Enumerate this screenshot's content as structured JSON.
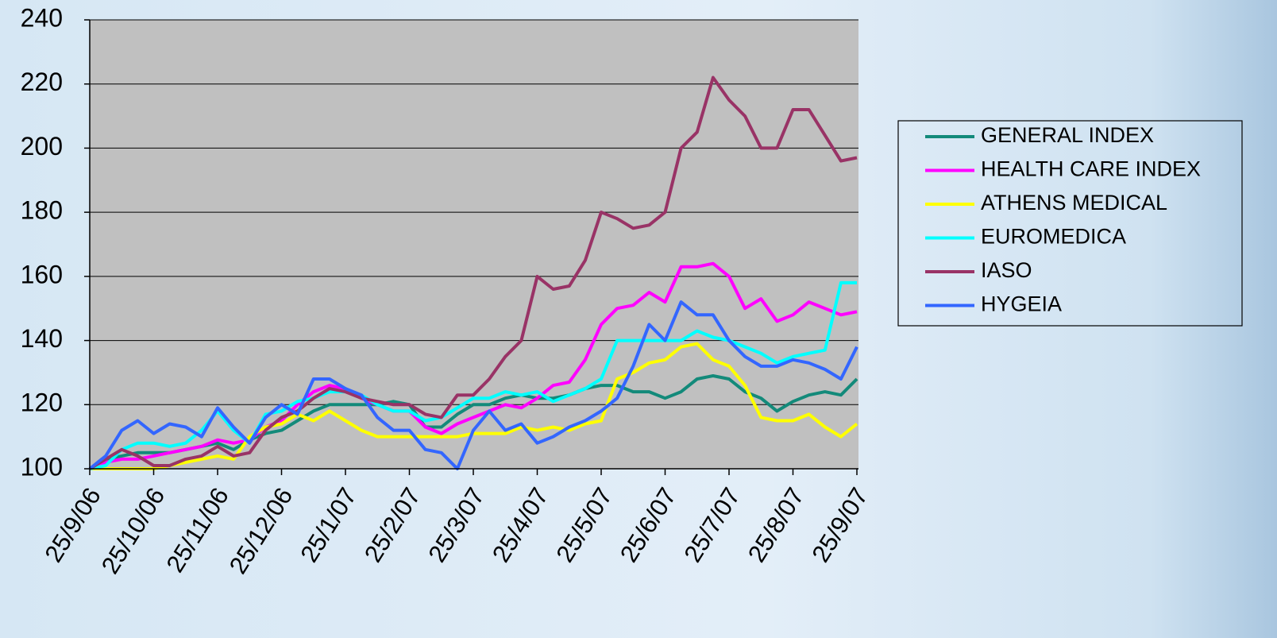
{
  "chart_data": {
    "type": "line",
    "categories": [
      "25/9/06",
      null,
      null,
      null,
      "25/10/06",
      null,
      null,
      null,
      "25/11/06",
      null,
      null,
      null,
      "25/12/06",
      null,
      null,
      null,
      "25/1/07",
      null,
      null,
      null,
      "25/2/07",
      null,
      null,
      null,
      "25/3/07",
      null,
      null,
      null,
      "25/4/07",
      null,
      null,
      null,
      "25/5/07",
      null,
      null,
      null,
      "25/6/07",
      null,
      null,
      null,
      "25/7/07",
      null,
      null,
      null,
      "25/8/07",
      null,
      null,
      null,
      "25/9/07"
    ],
    "ylim": [
      100,
      240
    ],
    "yticks": [
      100,
      120,
      140,
      160,
      180,
      200,
      220,
      240
    ],
    "grid": true,
    "legend": "right",
    "series": [
      {
        "name": "GENERAL INDEX",
        "color": "#138a7a",
        "values": [
          100,
          103,
          104,
          105,
          105,
          105,
          106,
          107,
          108,
          106,
          109,
          111,
          112,
          115,
          118,
          120,
          120,
          120,
          120,
          121,
          120,
          113,
          113,
          117,
          120,
          120,
          122,
          123,
          122,
          122,
          123,
          125,
          126,
          126,
          124,
          124,
          122,
          124,
          128,
          129,
          128,
          124,
          122,
          118,
          121,
          123,
          124,
          123,
          128
        ]
      },
      {
        "name": "HEALTH CARE INDEX",
        "color": "#ff00ff",
        "values": [
          100,
          102,
          103,
          103,
          104,
          105,
          106,
          107,
          109,
          108,
          109,
          113,
          115,
          120,
          124,
          126,
          125,
          122,
          120,
          118,
          118,
          113,
          111,
          114,
          116,
          118,
          120,
          119,
          122,
          126,
          127,
          134,
          145,
          150,
          151,
          155,
          152,
          163,
          163,
          164,
          160,
          150,
          153,
          146,
          148,
          152,
          150,
          148,
          149
        ]
      },
      {
        "name": "ATHENS MEDICAL",
        "color": "#ffff00",
        "values": [
          100,
          100,
          100,
          100,
          100,
          101,
          102,
          103,
          104,
          103,
          110,
          113,
          114,
          117,
          115,
          118,
          115,
          112,
          110,
          110,
          110,
          110,
          110,
          110,
          111,
          111,
          111,
          113,
          112,
          113,
          112,
          114,
          115,
          128,
          130,
          133,
          134,
          138,
          139,
          134,
          132,
          126,
          116,
          115,
          115,
          117,
          113,
          110,
          114
        ]
      },
      {
        "name": "EUROMEDICA",
        "color": "#00ffff",
        "values": [
          100,
          101,
          106,
          108,
          108,
          107,
          108,
          112,
          118,
          112,
          108,
          117,
          118,
          121,
          122,
          124,
          124,
          123,
          120,
          118,
          118,
          115,
          116,
          119,
          122,
          122,
          124,
          123,
          124,
          121,
          123,
          125,
          128,
          140,
          140,
          140,
          140,
          140,
          143,
          141,
          140,
          138,
          136,
          133,
          135,
          136,
          137,
          158,
          158
        ]
      },
      {
        "name": "IASO",
        "color": "#993366",
        "values": [
          100,
          103,
          106,
          104,
          101,
          101,
          103,
          104,
          107,
          104,
          105,
          112,
          116,
          118,
          122,
          125,
          124,
          122,
          121,
          120,
          120,
          117,
          116,
          123,
          123,
          128,
          135,
          140,
          160,
          156,
          157,
          165,
          180,
          178,
          175,
          176,
          180,
          200,
          205,
          222,
          215,
          210,
          200,
          200,
          212,
          212,
          204,
          196,
          197
        ]
      },
      {
        "name": "HYGEIA",
        "color": "#3366ff",
        "values": [
          100,
          104,
          112,
          115,
          111,
          114,
          113,
          110,
          119,
          113,
          108,
          116,
          120,
          117,
          128,
          128,
          125,
          123,
          116,
          112,
          112,
          106,
          105,
          100,
          112,
          118,
          112,
          114,
          108,
          110,
          113,
          115,
          118,
          122,
          132,
          145,
          140,
          152,
          148,
          148,
          140,
          135,
          132,
          132,
          134,
          133,
          131,
          128,
          138
        ]
      }
    ]
  }
}
